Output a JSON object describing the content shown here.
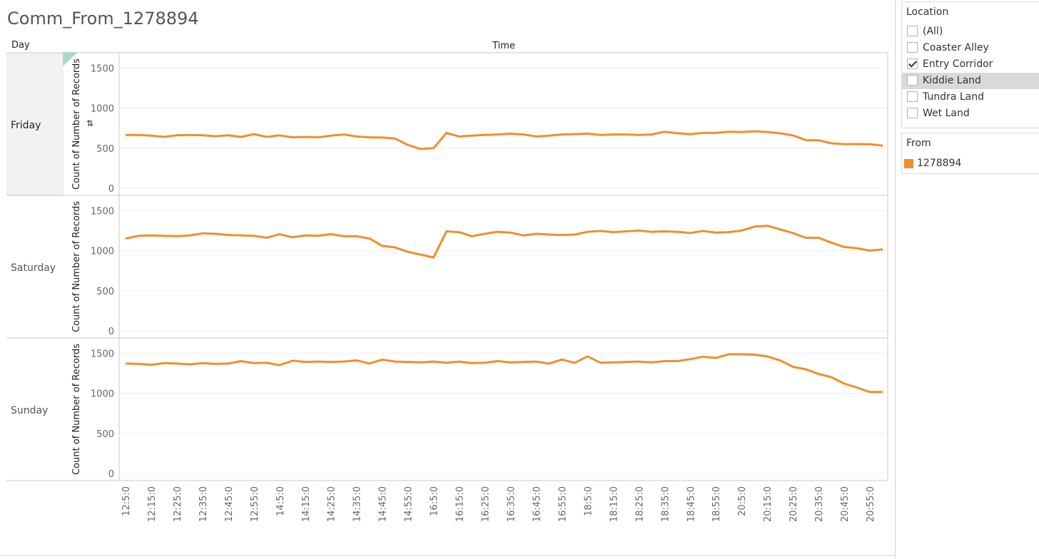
{
  "title": "Comm_From_1278894",
  "headers": {
    "row": "Day",
    "column": "Time"
  },
  "filters": {
    "location": {
      "title": "Location",
      "items": [
        {
          "label": "(All)",
          "checked": false
        },
        {
          "label": "Coaster Alley",
          "checked": false
        },
        {
          "label": "Entry Corridor",
          "checked": true
        },
        {
          "label": "Kiddie Land",
          "checked": false
        },
        {
          "label": "Tundra Land",
          "checked": false
        },
        {
          "label": "Wet Land",
          "checked": false
        }
      ]
    },
    "from": {
      "title": "From",
      "items": [
        {
          "label": "1278894",
          "color": "#f28e2b"
        }
      ]
    }
  },
  "chart_data": {
    "type": "line",
    "line_color": "#f28e2b",
    "ylabel": "Count of Number of Records",
    "xlabel": "Time",
    "ylim": [
      0,
      1600
    ],
    "yticks": [
      0,
      500,
      1000,
      1500
    ],
    "grid": true,
    "x_tick_labels": [
      "12:5:0",
      "12:15:0",
      "12:25:0",
      "12:35:0",
      "12:45:0",
      "12:55:0",
      "14:5:0",
      "14:15:0",
      "14:25:0",
      "14:35:0",
      "14:45:0",
      "14:55:0",
      "16:5:0",
      "16:15:0",
      "16:25:0",
      "16:35:0",
      "16:45:0",
      "16:55:0",
      "18:5:0",
      "18:15:0",
      "18:25:0",
      "18:35:0",
      "18:45:0",
      "18:55:0",
      "20:5:0",
      "20:15:0",
      "20:25:0",
      "20:35:0",
      "20:45:0",
      "20:55:0"
    ],
    "panels": [
      {
        "day": "Friday",
        "values": [
          665,
          663,
          655,
          640,
          660,
          665,
          660,
          648,
          660,
          640,
          675,
          640,
          660,
          635,
          640,
          635,
          655,
          670,
          645,
          635,
          632,
          620,
          540,
          490,
          500,
          690,
          645,
          655,
          665,
          670,
          680,
          670,
          645,
          655,
          670,
          675,
          680,
          665,
          670,
          670,
          665,
          670,
          705,
          685,
          675,
          690,
          690,
          705,
          700,
          710,
          700,
          685,
          660,
          600,
          598,
          560,
          550,
          550,
          548,
          530
        ]
      },
      {
        "day": "Saturday",
        "values": [
          1150,
          1185,
          1190,
          1185,
          1180,
          1190,
          1215,
          1210,
          1195,
          1190,
          1185,
          1160,
          1205,
          1165,
          1190,
          1185,
          1205,
          1180,
          1180,
          1150,
          1060,
          1040,
          985,
          950,
          915,
          1240,
          1230,
          1180,
          1210,
          1235,
          1225,
          1190,
          1210,
          1200,
          1195,
          1200,
          1235,
          1245,
          1230,
          1240,
          1250,
          1235,
          1240,
          1235,
          1220,
          1245,
          1225,
          1230,
          1250,
          1300,
          1310,
          1265,
          1220,
          1160,
          1160,
          1100,
          1045,
          1030,
          1000,
          1015
        ]
      },
      {
        "day": "Sunday",
        "values": [
          1370,
          1365,
          1355,
          1375,
          1370,
          1360,
          1375,
          1365,
          1370,
          1400,
          1375,
          1380,
          1350,
          1405,
          1390,
          1395,
          1390,
          1395,
          1410,
          1370,
          1420,
          1395,
          1390,
          1385,
          1395,
          1380,
          1395,
          1375,
          1380,
          1400,
          1385,
          1390,
          1395,
          1370,
          1420,
          1380,
          1460,
          1380,
          1385,
          1390,
          1395,
          1385,
          1400,
          1400,
          1425,
          1455,
          1440,
          1485,
          1485,
          1480,
          1460,
          1410,
          1330,
          1300,
          1240,
          1200,
          1120,
          1070,
          1015,
          1015
        ]
      }
    ]
  }
}
